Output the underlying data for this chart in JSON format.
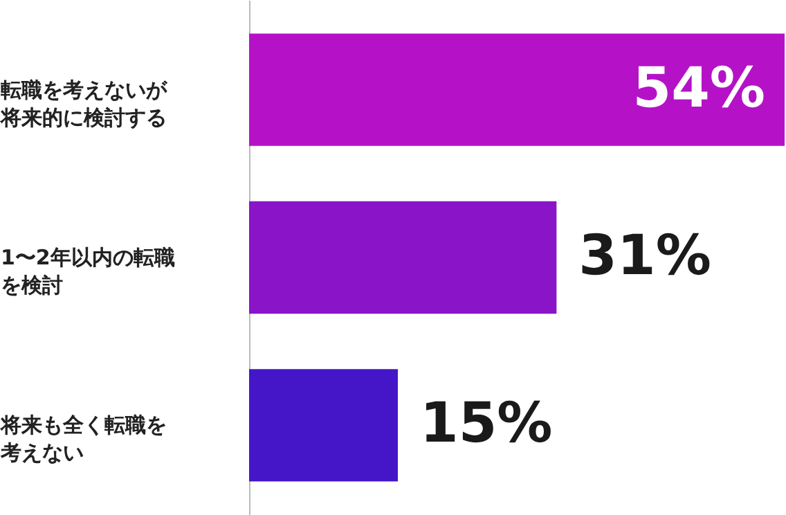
{
  "chart_data": {
    "type": "bar",
    "orientation": "horizontal",
    "categories": [
      "転職を考えないが将来的に検討する",
      "1〜2年以内の転職を検討",
      "将来も全く転職を考えない"
    ],
    "values": [
      54,
      31,
      15
    ],
    "colors": [
      "#b512c8",
      "#8a14c8",
      "#4416c8"
    ],
    "value_labels": [
      "54%",
      "31%",
      "15%"
    ],
    "tick_labels": "y"
  }
}
